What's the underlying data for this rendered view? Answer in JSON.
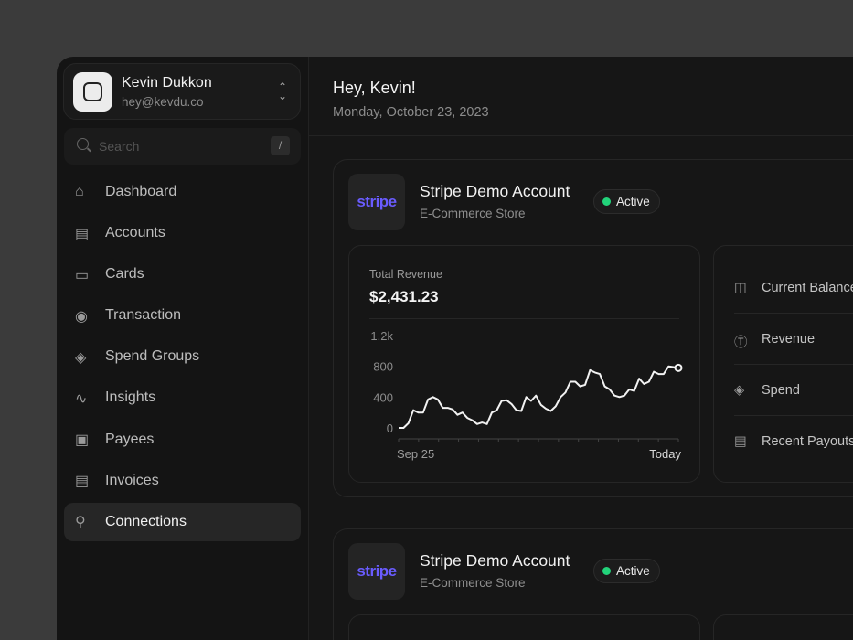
{
  "user": {
    "name": "Kevin Dukkon",
    "email": "hey@kevdu.co"
  },
  "search": {
    "placeholder": "Search",
    "shortcut": "/"
  },
  "nav": [
    {
      "label": "Dashboard",
      "icon": "home-icon"
    },
    {
      "label": "Accounts",
      "icon": "chart-box-icon"
    },
    {
      "label": "Cards",
      "icon": "card-icon"
    },
    {
      "label": "Transaction",
      "icon": "cash-icon"
    },
    {
      "label": "Spend Groups",
      "icon": "layers-icon"
    },
    {
      "label": "Insights",
      "icon": "pulse-icon"
    },
    {
      "label": "Payees",
      "icon": "contact-icon"
    },
    {
      "label": "Invoices",
      "icon": "archive-icon"
    },
    {
      "label": "Connections",
      "icon": "branch-icon",
      "active": true
    }
  ],
  "header": {
    "greeting": "Hey, Kevin!",
    "date": "Monday, October 23, 2023"
  },
  "accounts": [
    {
      "logo": "stripe",
      "title": "Stripe Demo Account",
      "subtitle": "E-Commerce Store",
      "status": "Active",
      "status_color": "#22d37a",
      "revenue_label": "Total Revenue",
      "revenue_value": "$2,431.23",
      "stats": [
        "Current Balance",
        "Revenue",
        "Spend",
        "Recent Payouts"
      ]
    },
    {
      "logo": "stripe",
      "title": "Stripe Demo Account",
      "subtitle": "E-Commerce Store",
      "status": "Active",
      "status_color": "#22d37a"
    }
  ],
  "chart_data": {
    "type": "line",
    "x_labels": [
      "Sep 25",
      "Today"
    ],
    "y_ticks": [
      "0",
      "400",
      "800",
      "1.2k"
    ],
    "ylim": [
      0,
      1200
    ],
    "grid": false,
    "values": [
      0,
      0,
      60,
      230,
      200,
      200,
      370,
      400,
      370,
      260,
      260,
      240,
      170,
      200,
      130,
      100,
      50,
      70,
      50,
      200,
      230,
      350,
      360,
      310,
      230,
      220,
      400,
      350,
      420,
      300,
      250,
      220,
      280,
      400,
      460,
      600,
      600,
      540,
      560,
      750,
      720,
      700,
      540,
      500,
      420,
      400,
      420,
      500,
      480,
      640,
      570,
      600,
      730,
      700,
      700,
      800,
      790,
      780
    ]
  }
}
